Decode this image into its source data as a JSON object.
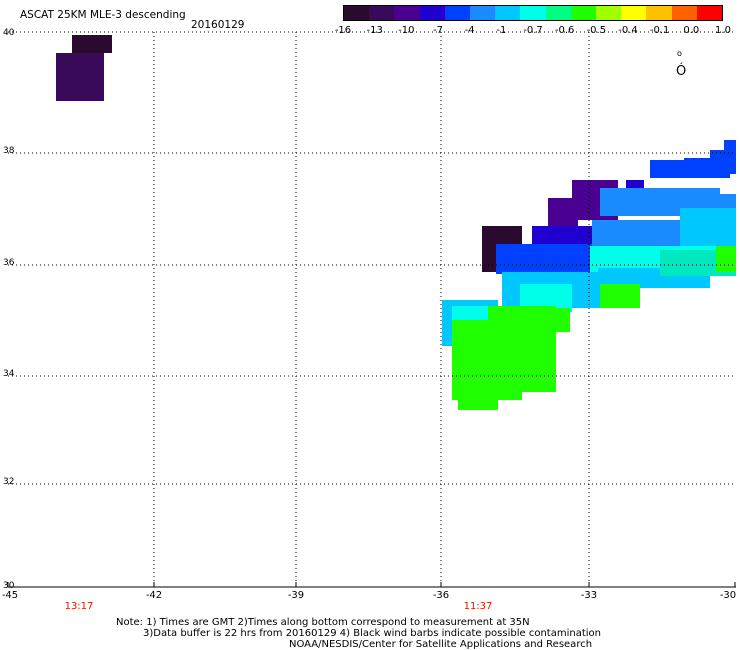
{
  "header": {
    "title": "ASCAT 25KM MLE-3 descending",
    "date": "20160129"
  },
  "colorbar": {
    "labels": [
      "-16",
      "-13",
      "-10",
      "-7",
      "-4",
      "-1",
      "-0.7",
      "-0.6",
      "-0.5",
      "-0.4",
      "-0.1",
      "0.0",
      "1.0"
    ],
    "colors": [
      "#2a0a2e",
      "#3a0a5a",
      "#4a0090",
      "#2000d0",
      "#0040ff",
      "#1a8cff",
      "#00c8ff",
      "#00ffe8",
      "#00ff80",
      "#20ff00",
      "#a0ff00",
      "#ffff00",
      "#ffc000",
      "#ff6000",
      "#ff0000"
    ]
  },
  "map": {
    "lat_labels": [
      "40",
      "38",
      "36",
      "34",
      "32",
      "30"
    ],
    "lon_labels": [
      "-45",
      "-42",
      "-39",
      "-36",
      "-33",
      "-30"
    ],
    "time_labels": [
      {
        "text": "13:17",
        "lon": -43.5
      },
      {
        "text": "11:37",
        "lon": -35.2
      }
    ],
    "wind_symbol": "Ó",
    "lon_range": [
      -45,
      -30
    ],
    "lat_range": [
      30,
      40
    ],
    "swath_colors": {
      "darkest": "#2a0a2e",
      "dark_purple": "#3a0a5a",
      "purple": "#4a0090",
      "blue": "#2000d0",
      "mid_blue": "#0040ff",
      "light_blue": "#1a8cff",
      "sky": "#00c8ff",
      "cyan": "#00ffe8",
      "green": "#20ff00",
      "teal": "#00e8c0"
    }
  },
  "notes": {
    "line1": "Note: 1) Times are GMT 2)Times along bottom correspond to measurement at 35N",
    "line2": "3)Data buffer is 22 hrs from 20160129 4) Black wind barbs indicate possible contamination",
    "line3": "NOAA/NESDIS/Center for Satellite Applications and Research"
  }
}
